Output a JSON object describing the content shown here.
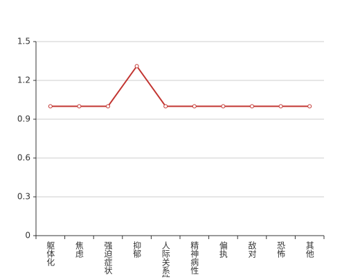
{
  "chart_data": {
    "type": "line",
    "categories": [
      "躯体化",
      "焦虑",
      "强迫症状",
      "抑郁",
      "人际关系敏感",
      "精神病性",
      "偏执",
      "敌对",
      "恐怖",
      "其他"
    ],
    "series": [
      {
        "color": "#c23531",
        "values": [
          1,
          1,
          1,
          1.31,
          1,
          1,
          1,
          1,
          1,
          1
        ]
      }
    ],
    "ylim": [
      0,
      1.5
    ],
    "yticks": [
      0,
      0.3,
      0.6,
      0.9,
      1.2,
      1.5
    ],
    "grid": true
  }
}
